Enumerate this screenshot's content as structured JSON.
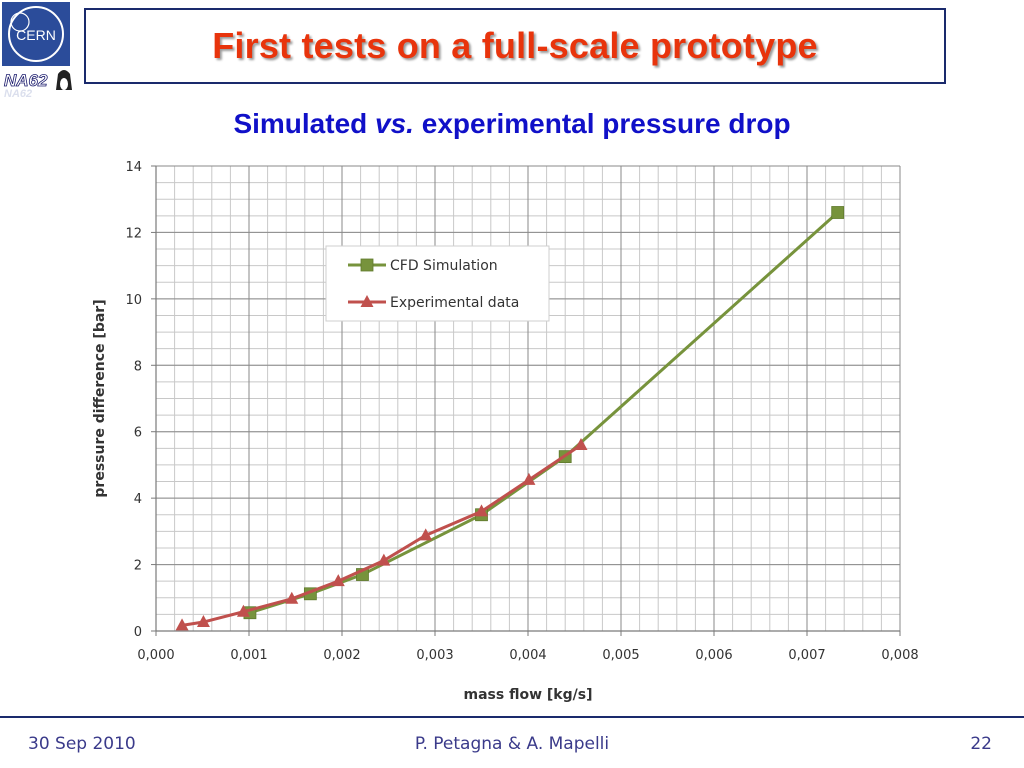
{
  "header": {
    "logo_text_top": "CERN",
    "logo_text_bottom": "NA62",
    "title": "First tests on a full-scale prototype"
  },
  "subtitle": {
    "part1": "Simulated ",
    "part2": "vs.",
    "part3": " experimental pressure drop"
  },
  "footer": {
    "date": "30 Sep 2010",
    "authors": "P. Petagna & A. Mapelli",
    "page": "22"
  },
  "colors": {
    "cfd": "#77933c",
    "experimental": "#c0504d",
    "title": "#e8340c",
    "subtitle": "#1010c8",
    "frame": "#1a2a6c"
  },
  "chart_data": {
    "type": "line",
    "title": "",
    "xlabel": "mass flow [kg/s]",
    "ylabel": "pressure difference [bar]",
    "xlim": [
      0,
      0.008
    ],
    "ylim": [
      0,
      14
    ],
    "x_tick_labels": [
      "0,000",
      "0,001",
      "0,002",
      "0,003",
      "0,004",
      "0,005",
      "0,006",
      "0,007",
      "0,008"
    ],
    "y_tick_labels": [
      "0",
      "2",
      "4",
      "6",
      "8",
      "10",
      "12",
      "14"
    ],
    "grid": true,
    "legend_placement": "top-left",
    "series": [
      {
        "name": "CFD Simulation",
        "marker": "square",
        "x": [
          0.00101,
          0.00166,
          0.00222,
          0.0035,
          0.0044,
          0.00733
        ],
        "y": [
          0.55,
          1.12,
          1.7,
          3.5,
          5.25,
          12.6
        ]
      },
      {
        "name": "Experimental data",
        "marker": "triangle",
        "x": [
          0.00028,
          0.00051,
          0.00094,
          0.00146,
          0.00196,
          0.00245,
          0.0029,
          0.0035,
          0.00401,
          0.00457
        ],
        "y": [
          0.17,
          0.27,
          0.58,
          0.97,
          1.5,
          2.12,
          2.88,
          3.6,
          4.55,
          5.6
        ]
      }
    ]
  }
}
